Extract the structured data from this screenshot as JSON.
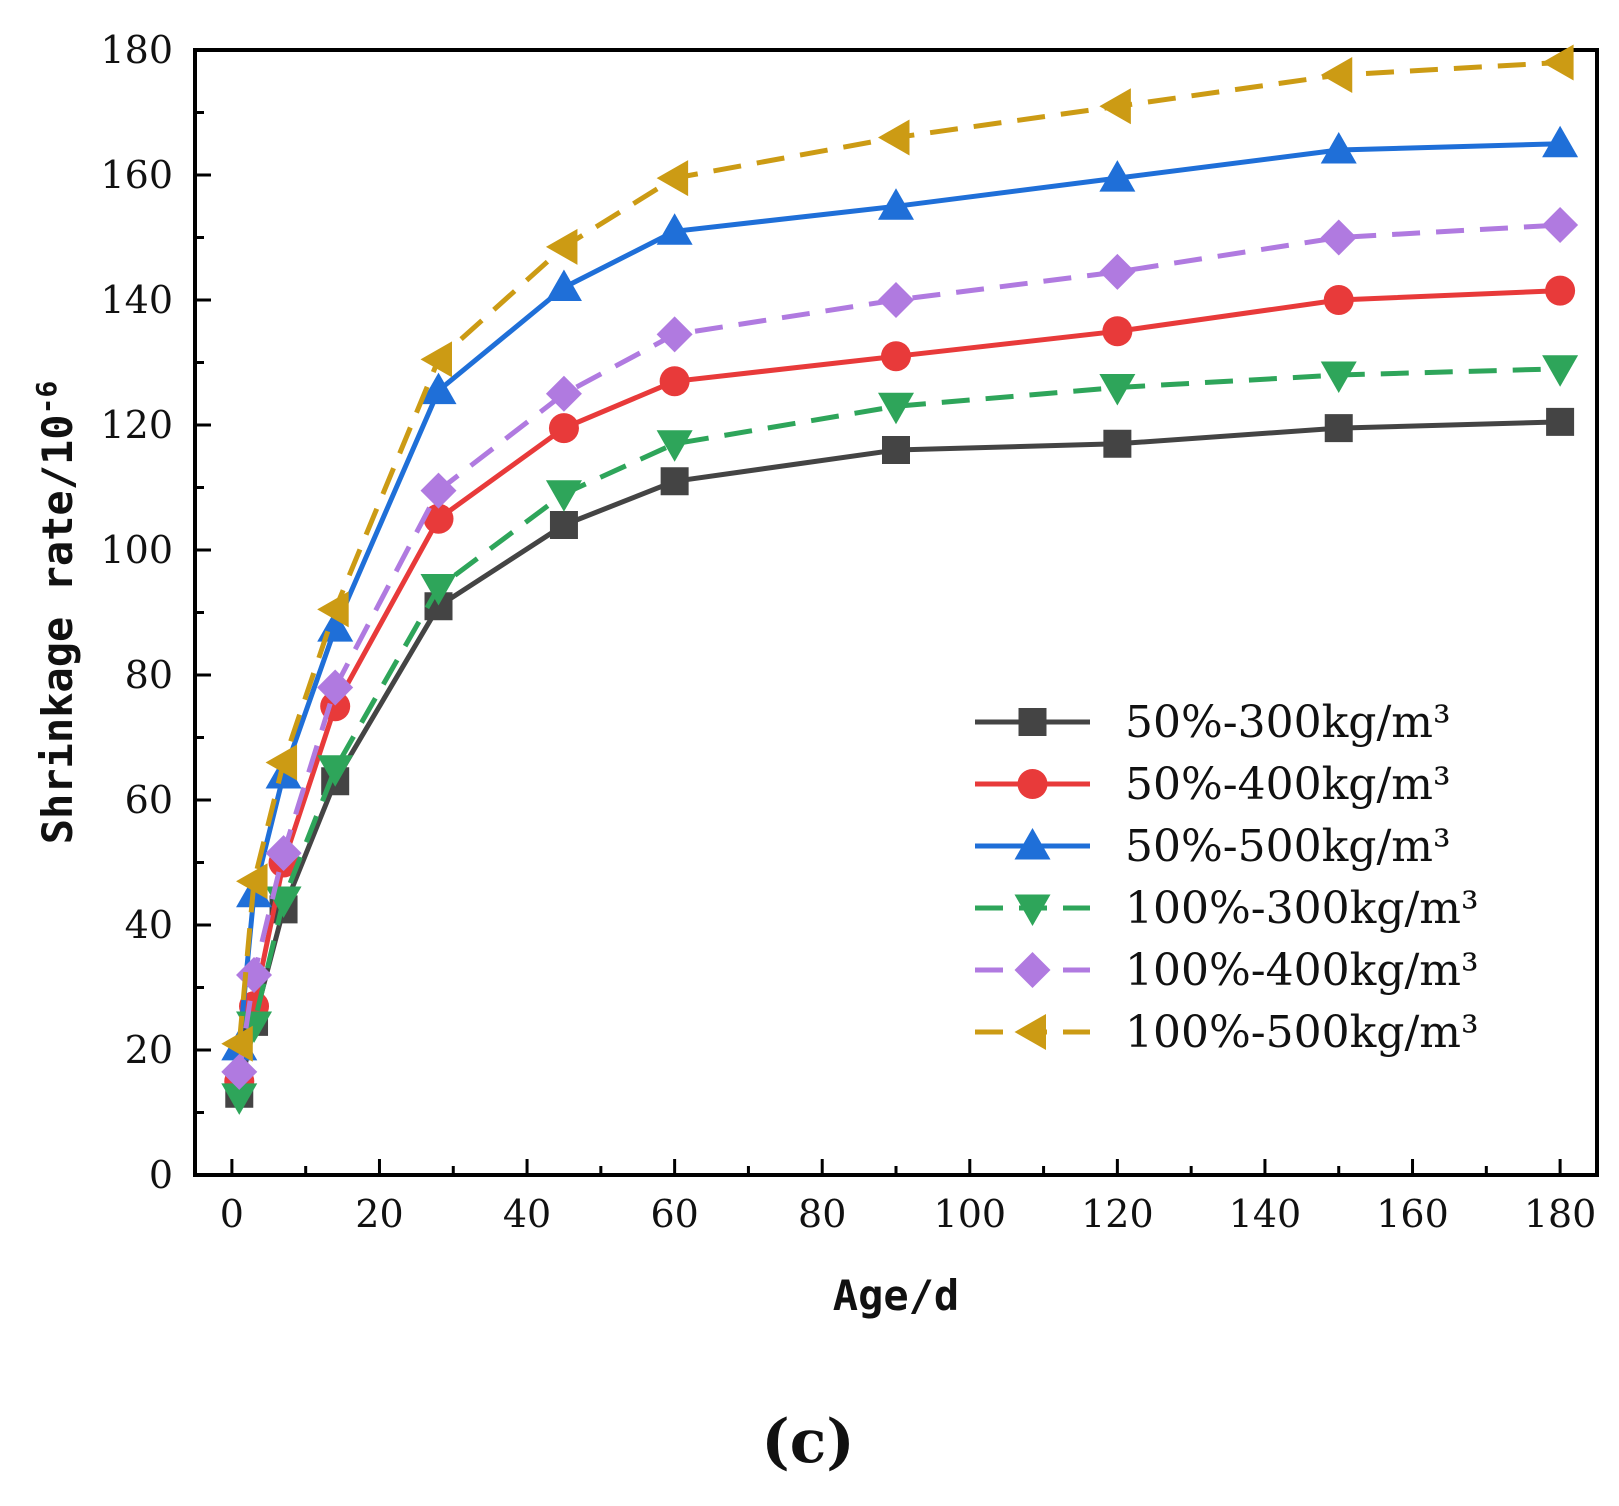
{
  "chart_data": {
    "type": "line",
    "panel_label": "(c)",
    "xlabel": "Age/d",
    "ylabel_main": "Shrinkage rate/10",
    "ylabel_exp": "-6",
    "xlim": [
      -5,
      185
    ],
    "ylim": [
      0,
      180
    ],
    "xticks": [
      0,
      20,
      40,
      60,
      80,
      100,
      120,
      140,
      160,
      180
    ],
    "yticks": [
      0,
      20,
      40,
      60,
      80,
      100,
      120,
      140,
      160,
      180
    ],
    "grid": false,
    "legend_position": "center-right",
    "x": [
      1,
      3,
      7,
      14,
      28,
      45,
      60,
      90,
      120,
      150,
      180
    ],
    "series": [
      {
        "name": "50%-300kg/m³",
        "color": "#444444",
        "marker": "square",
        "dashed": false,
        "values": [
          13,
          24.5,
          42.5,
          63,
          91,
          104,
          111,
          116,
          117,
          119.5,
          120.5
        ]
      },
      {
        "name": "50%-400kg/m³",
        "color": "#e83a3a",
        "marker": "circle",
        "dashed": false,
        "values": [
          15,
          27,
          50,
          75,
          105,
          119.5,
          127,
          131,
          135,
          140,
          141.5
        ]
      },
      {
        "name": "50%-500kg/m³",
        "color": "#1f6fd8",
        "marker": "triangle-up",
        "dashed": false,
        "values": [
          20.5,
          45,
          64,
          87.5,
          125.5,
          142,
          151,
          155,
          159.5,
          164,
          165
        ]
      },
      {
        "name": "100%-300kg/m³",
        "color": "#2ea55a",
        "marker": "triangle-down",
        "dashed": true,
        "values": [
          12.5,
          24,
          44,
          65,
          94,
          109,
          117,
          123,
          126,
          128,
          129
        ]
      },
      {
        "name": "100%-400kg/m³",
        "color": "#b07ae0",
        "marker": "diamond",
        "dashed": true,
        "values": [
          16.5,
          32,
          51.5,
          78,
          109.5,
          125,
          134.5,
          140,
          144.5,
          150,
          152
        ]
      },
      {
        "name": "100%-500kg/m³",
        "color": "#cc9b14",
        "marker": "triangle-left",
        "dashed": true,
        "values": [
          21,
          47,
          66,
          90.5,
          130.5,
          148.5,
          159.5,
          166,
          171,
          176,
          178
        ]
      }
    ]
  }
}
